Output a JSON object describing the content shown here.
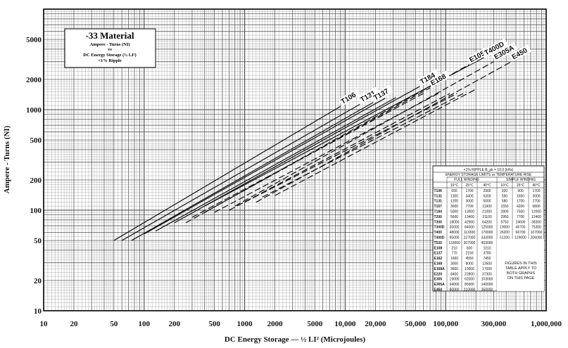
{
  "chart_data": {
    "type": "line",
    "title": "-33 Material",
    "subtitle_lines": [
      "Ampere - Turns (NI)",
      "vs",
      "DC Energy Storage (½ LI²)",
      "<1% Ripple"
    ],
    "xlabel": "DC Energy Storage — ½ LI² (Microjoules)",
    "ylabel": "Ampere - Turns (NI)",
    "x_scale": "log",
    "y_scale": "log",
    "xlim": [
      10,
      1000000
    ],
    "ylim": [
      10,
      10000
    ],
    "x_ticks": [
      10,
      20,
      50,
      100,
      200,
      500,
      1000,
      2000,
      5000,
      10000,
      20000,
      50000,
      100000,
      300000,
      1000000
    ],
    "x_tick_labels": [
      "10",
      "20",
      "50",
      "100",
      "200",
      "500",
      "1000",
      "2000",
      "5000",
      "10,000",
      "20,000",
      "50,000",
      "100,000",
      "300,000",
      "1,000,000"
    ],
    "y_ticks": [
      10,
      20,
      50,
      100,
      200,
      500,
      1000,
      2000,
      5000
    ],
    "y_tick_labels": [
      "10",
      "20",
      "50",
      "100",
      "200",
      "500",
      "1000",
      "2000",
      "5000"
    ],
    "grid": true,
    "series": [
      {
        "name": "T106",
        "style": "solid",
        "points": [
          [
            50,
            50
          ],
          [
            9000,
            1080
          ]
        ]
      },
      {
        "name": "T131",
        "style": "solid",
        "points": [
          [
            60,
            50
          ],
          [
            14000,
            1130
          ]
        ]
      },
      {
        "name": "T137",
        "style": "solid",
        "points": [
          [
            75,
            50
          ],
          [
            19000,
            1180
          ]
        ]
      },
      {
        "name": "T184",
        "style": "solid",
        "points": [
          [
            200,
            75
          ],
          [
            55000,
            1700
          ]
        ]
      },
      {
        "name": "E168",
        "style": "dashed",
        "points": [
          [
            260,
            75
          ],
          [
            70000,
            1650
          ]
        ]
      },
      {
        "name": "E105",
        "style": "dashed",
        "points": [
          [
            400,
            95
          ],
          [
            170000,
            2800
          ]
        ]
      },
      {
        "name": "T400D",
        "style": "solid",
        "points": [
          [
            400,
            110
          ],
          [
            240000,
            3300
          ]
        ]
      },
      {
        "name": "E305A",
        "style": "dashed",
        "points": [
          [
            800,
            110
          ],
          [
            300000,
            3000
          ]
        ]
      },
      {
        "name": "E450",
        "style": "dashed",
        "points": [
          [
            1300,
            120
          ],
          [
            450000,
            3000
          ]
        ]
      },
      {
        "name": "",
        "style": "solid",
        "points": [
          [
            100,
            58
          ],
          [
            25000,
            1300
          ]
        ]
      },
      {
        "name": "",
        "style": "solid",
        "points": [
          [
            130,
            62
          ],
          [
            32000,
            1320
          ]
        ]
      },
      {
        "name": "",
        "style": "dashed",
        "points": [
          [
            300,
            85
          ],
          [
            60000,
            1450
          ]
        ]
      },
      {
        "name": "",
        "style": "dashed",
        "points": [
          [
            500,
            95
          ],
          [
            90000,
            1500
          ]
        ]
      },
      {
        "name": "",
        "style": "dashed",
        "points": [
          [
            700,
            100
          ],
          [
            110000,
            1450
          ]
        ]
      },
      {
        "name": "",
        "style": "dashed",
        "points": [
          [
            1000,
            120
          ],
          [
            130000,
            1450
          ]
        ]
      },
      {
        "name": "",
        "style": "dashed",
        "points": [
          [
            1500,
            135
          ],
          [
            160000,
            1500
          ]
        ]
      },
      {
        "name": "",
        "style": "dashed",
        "points": [
          [
            2000,
            140
          ],
          [
            200000,
            1600
          ]
        ]
      }
    ],
    "table": {
      "title_lines": [
        "<1% RIPPLE    B_pk = 10.0 (kHz)",
        "ENERGY STORAGE LIMITS vs TEMPERATURE RISE"
      ],
      "group_headers": [
        "FULL WINDING",
        "SIMPLE WINDING"
      ],
      "columns": [
        "10°C",
        "25°C",
        "40°C",
        "10°C",
        "25°C",
        "40°C"
      ],
      "rows": [
        [
          "T106",
          "650",
          "1700",
          "2900",
          "320",
          "900",
          "1700"
        ],
        [
          "T131",
          "1300",
          "3400",
          "5300",
          "590",
          "1650",
          "3000"
        ],
        [
          "T131",
          "1200",
          "3000",
          "5000",
          "580",
          "1700",
          "2700"
        ],
        [
          "T157",
          "3000",
          "7700",
          "11900",
          "1550",
          "4200",
          "6800"
        ],
        [
          "T184",
          "5000",
          "13000",
          "21000",
          "2800",
          "7500",
          "12000"
        ],
        [
          "T200",
          "5600",
          "13400",
          "21100",
          "2950",
          "7700",
          "12400"
        ],
        [
          "T300",
          "18000",
          "42900",
          "64200",
          "9750",
          "24600",
          "38300"
        ],
        [
          "T300D",
          "35000",
          "84000",
          "125000",
          "19000",
          "46700",
          "75300"
        ],
        [
          "T400",
          "48000",
          "113300",
          "170000",
          "26200",
          "66700",
          "107000"
        ],
        [
          "T400D",
          "95000",
          "227000",
          "333000",
          "51200",
          "129000",
          "206000"
        ],
        [
          "T520",
          "133000",
          "307000",
          "453000",
          "72800",
          "180000",
          "280000"
        ],
        [
          "E108",
          "210",
          "600",
          "1010",
          "",
          "",
          ""
        ],
        [
          "E137",
          "770",
          "2150",
          "3780",
          "",
          "",
          ""
        ],
        [
          "E162",
          "1660",
          "4550",
          "7450",
          "",
          "",
          ""
        ],
        [
          "E168",
          "3000",
          "8000",
          "13500",
          "",
          "",
          ""
        ],
        [
          "E168A",
          "3600",
          "10000",
          "17000",
          "",
          "",
          ""
        ],
        [
          "E220",
          "8400",
          "22800",
          "37300",
          "",
          "",
          ""
        ],
        [
          "E305",
          "19000",
          "62000",
          "103000",
          "",
          "",
          ""
        ],
        [
          "E305A",
          "34000",
          "85000",
          "140000",
          "",
          "",
          ""
        ],
        [
          "E450",
          "80000",
          "210000",
          "350000",
          "",
          "",
          ""
        ]
      ],
      "note_lines": [
        "FIGURES IN THIS",
        "TABLE APPLY TO",
        "BOTH GRAPHS",
        "ON THIS PAGE"
      ]
    }
  }
}
